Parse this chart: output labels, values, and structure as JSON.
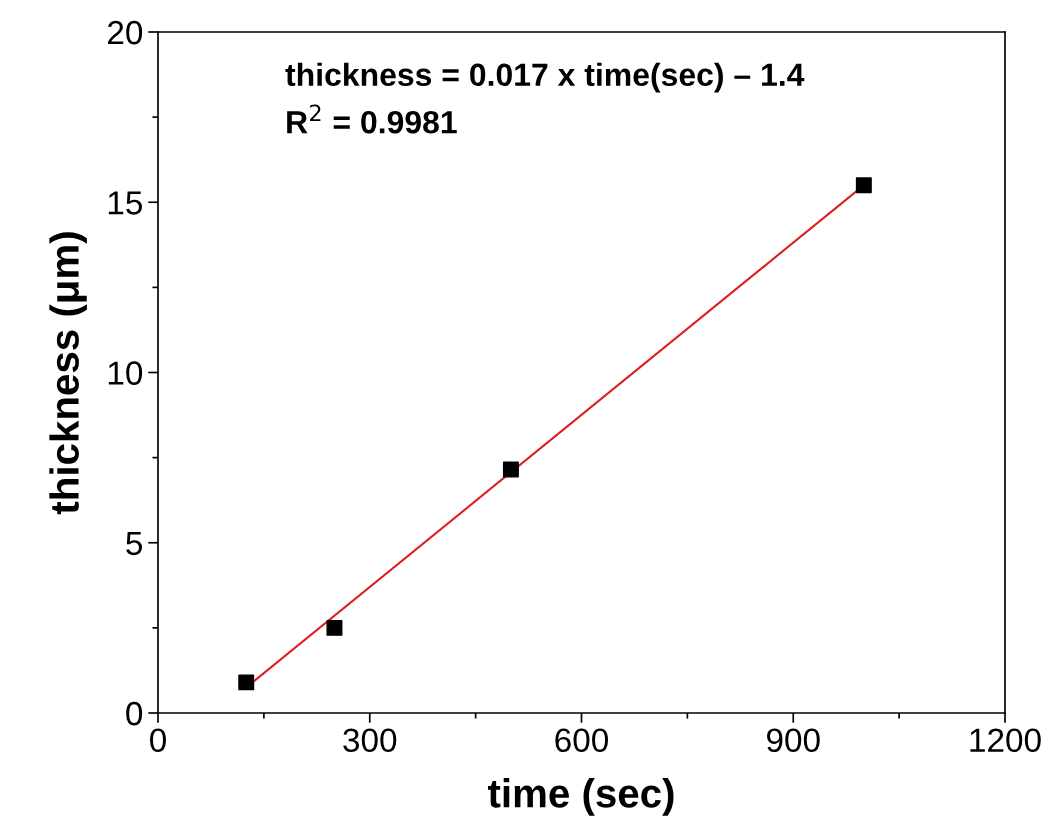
{
  "chart_data": {
    "type": "scatter",
    "xlabel": "time (sec)",
    "ylabel": "thickness (μm)",
    "annotations": [
      "thickness = 0.017 x time(sec) – 1.4",
      "R$^{2}$ = 0.9981"
    ],
    "series": [
      {
        "color": "#000000",
        "marker": "square",
        "x": [
          125,
          250,
          500,
          1000
        ],
        "values": [
          0.9,
          2.5,
          7.15,
          15.5
        ]
      },
      {
        "type": "line",
        "color": "#dd1f1f",
        "marker": "none",
        "line_style": "solid",
        "x": [
          125,
          1000
        ],
        "values": [
          0.75,
          15.5
        ]
      }
    ],
    "xlim": [
      0,
      1200
    ],
    "xticks": [
      0,
      300,
      600,
      900,
      1200
    ],
    "ylim": [
      0,
      20
    ],
    "yticks": [
      0,
      5,
      10,
      15,
      20
    ],
    "grid": false,
    "legend": false
  }
}
